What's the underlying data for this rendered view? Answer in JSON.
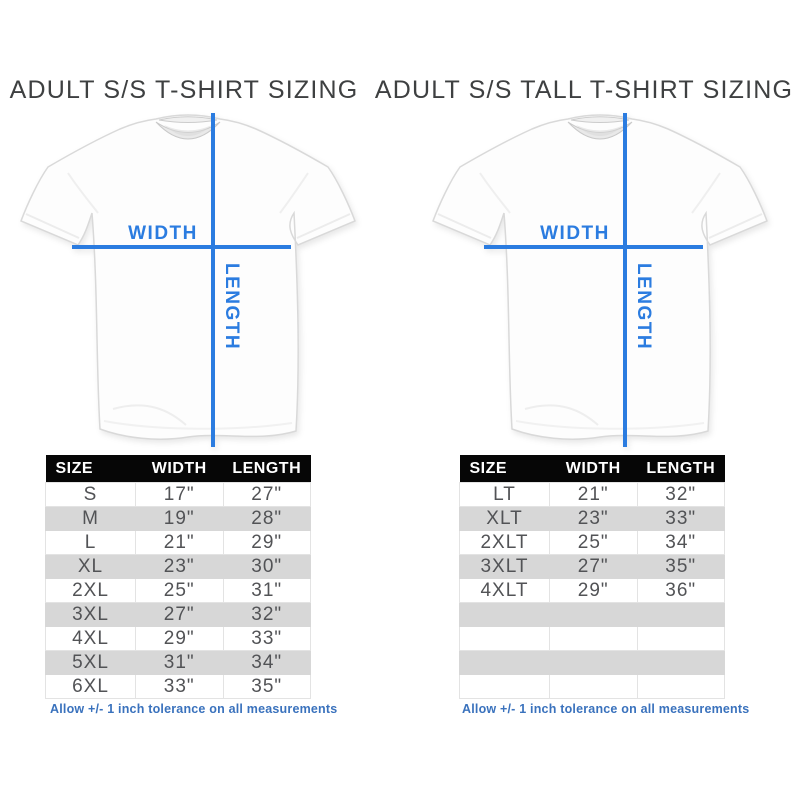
{
  "colors": {
    "line_blue": "#2b7ce0",
    "note_blue": "#3a72bd",
    "title_gray": "#3e4041",
    "data_text": "#525356",
    "row_alt_gray": "#d7d7d7",
    "header_bg": "#060606",
    "header_text": "#ffffff"
  },
  "panels": [
    {
      "title": "ADULT S/S T-SHIRT SIZING",
      "diagram": {
        "width_label": "WIDTH",
        "length_label": "LENGTH"
      },
      "table": {
        "headers": [
          "SIZE",
          "WIDTH",
          "LENGTH"
        ],
        "rows": [
          [
            "S",
            "17\"",
            "27\""
          ],
          [
            "M",
            "19\"",
            "28\""
          ],
          [
            "L",
            "21\"",
            "29\""
          ],
          [
            "XL",
            "23\"",
            "30\""
          ],
          [
            "2XL",
            "25\"",
            "31\""
          ],
          [
            "3XL",
            "27\"",
            "32\""
          ],
          [
            "4XL",
            "29\"",
            "33\""
          ],
          [
            "5XL",
            "31\"",
            "34\""
          ],
          [
            "6XL",
            "33\"",
            "35\""
          ]
        ],
        "empty_rows": 0
      },
      "note": "Allow +/- 1 inch tolerance on all measurements"
    },
    {
      "title": "ADULT S/S TALL T-SHIRT SIZING",
      "diagram": {
        "width_label": "WIDTH",
        "length_label": "LENGTH"
      },
      "table": {
        "headers": [
          "SIZE",
          "WIDTH",
          "LENGTH"
        ],
        "rows": [
          [
            "LT",
            "21\"",
            "32\""
          ],
          [
            "XLT",
            "23\"",
            "33\""
          ],
          [
            "2XLT",
            "25\"",
            "34\""
          ],
          [
            "3XLT",
            "27\"",
            "35\""
          ],
          [
            "4XLT",
            "29\"",
            "36\""
          ]
        ],
        "empty_rows": 4
      },
      "note": "Allow +/- 1 inch tolerance on all measurements"
    }
  ]
}
